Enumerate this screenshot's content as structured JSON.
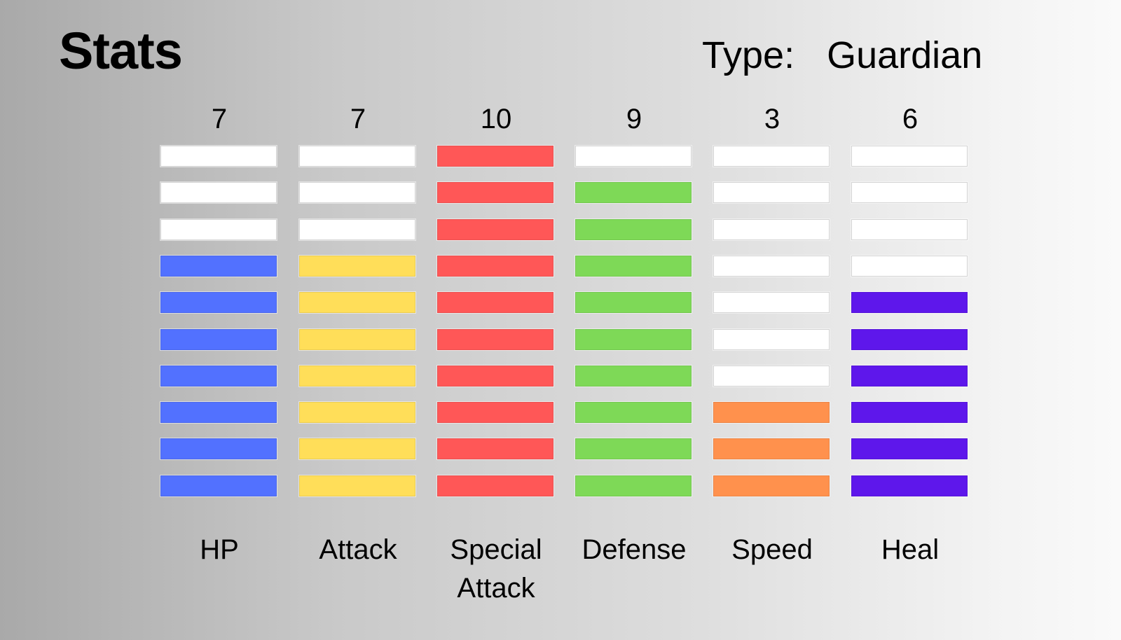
{
  "title": "Stats",
  "type": {
    "label": "Type:",
    "value": "Guardian"
  },
  "max_level": 10,
  "empty_color": "#ffffff",
  "stats": [
    {
      "name": "HP",
      "value": "7",
      "level": 7,
      "color": "#5271ff"
    },
    {
      "name": "Attack",
      "value": "7",
      "level": 7,
      "color": "#ffde59"
    },
    {
      "name": "Special Attack",
      "value": "10",
      "level": 10,
      "color": "#ff5757"
    },
    {
      "name": "Defense",
      "value": "9",
      "level": 9,
      "color": "#7ed957"
    },
    {
      "name": "Speed",
      "value": "3",
      "level": 3,
      "color": "#ff914d"
    },
    {
      "name": "Heal",
      "value": "6",
      "level": 6,
      "color": "#5e17eb"
    }
  ]
}
